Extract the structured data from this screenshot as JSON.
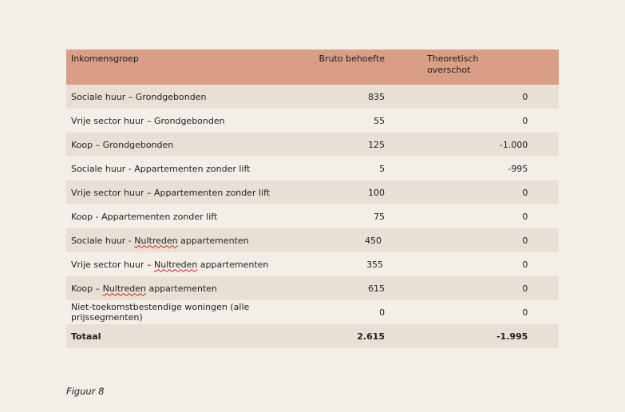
{
  "table": {
    "headers": {
      "col1": "Inkomensgroep",
      "col2": "Bruto behoefte",
      "col3_line1": "Theoretisch",
      "col3_line2": "overschot"
    },
    "rows": [
      {
        "label_pre": "Sociale huur – Grondgebonden",
        "label_mark": "",
        "label_post": "",
        "bruto": "835",
        "overschot": "0"
      },
      {
        "label_pre": "Vrije sector huur – Grondgebonden",
        "label_mark": "",
        "label_post": "",
        "bruto": "55",
        "overschot": "0"
      },
      {
        "label_pre": "Koop – Grondgebonden",
        "label_mark": "",
        "label_post": "",
        "bruto": "125",
        "overschot": "-1.000"
      },
      {
        "label_pre": "Sociale huur - Appartementen zonder lift",
        "label_mark": "",
        "label_post": "",
        "bruto": "5",
        "overschot": "-995"
      },
      {
        "label_pre": "Vrije sector huur – Appartementen zonder lift",
        "label_mark": "",
        "label_post": "",
        "bruto": "100",
        "overschot": "0"
      },
      {
        "label_pre": "Koop - Appartementen zonder lift",
        "label_mark": "",
        "label_post": "",
        "bruto": "75",
        "overschot": "0"
      },
      {
        "label_pre": "Sociale huur - ",
        "label_mark": "Nultreden",
        "label_post": " appartementen",
        "bruto": "450",
        "overschot": "0"
      },
      {
        "label_pre": "Vrije sector huur – ",
        "label_mark": "Nultreden",
        "label_post": " appartementen",
        "bruto": "355",
        "overschot": "0"
      },
      {
        "label_pre": "Koop – ",
        "label_mark": "Nultreden",
        "label_post": " appartementen",
        "bruto": "615",
        "overschot": "0"
      },
      {
        "label_pre": "Niet-toekomstbestendige woningen (alle prijssegmenten)",
        "label_mark": "",
        "label_post": "",
        "bruto": "0",
        "overschot": "0"
      }
    ],
    "total": {
      "label": "Totaal",
      "bruto": "2.615",
      "overschot": "-1.995"
    }
  },
  "caption": "Figuur 8",
  "colors": {
    "header_bg": "#d99e85",
    "row_alt_bg": "#e8e0d4",
    "page_bg": "#f3efe8"
  }
}
